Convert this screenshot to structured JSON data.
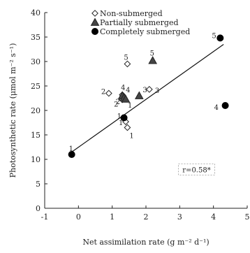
{
  "chart_data": {
    "type": "scatter",
    "xlabel": "Net assimilation rate (g m⁻² d⁻¹)",
    "ylabel": "Photosynthetic rate (μmol m⁻² s⁻¹)",
    "xlim": [
      -1,
      5
    ],
    "ylim": [
      0,
      40
    ],
    "x_ticks": [
      -1,
      0,
      1,
      2,
      3,
      4,
      5
    ],
    "y_ticks": [
      0,
      5,
      10,
      15,
      20,
      25,
      30,
      35,
      40
    ],
    "x_tick_labels": [
      "-1",
      "0",
      "1",
      "2",
      "3",
      "4",
      "5"
    ],
    "y_tick_labels": [
      "0",
      "5",
      "10",
      "15",
      "20",
      "25",
      "30",
      "35",
      "40"
    ],
    "grid": false,
    "legend_position": "top-left",
    "series": [
      {
        "name": "Non-submerged",
        "marker": "diamond-open",
        "points": [
          {
            "x": 0.9,
            "y": 23.5,
            "label": "2"
          },
          {
            "x": 1.3,
            "y": 22.2,
            "label": "2"
          },
          {
            "x": 1.4,
            "y": 17.7,
            "label": "1"
          },
          {
            "x": 1.45,
            "y": 16.5,
            "label": "1"
          },
          {
            "x": 2.1,
            "y": 24.3,
            "label": "3"
          },
          {
            "x": 1.45,
            "y": 29.5,
            "label": "5"
          },
          {
            "x": 1.3,
            "y": 23.2,
            "label": "4"
          }
        ]
      },
      {
        "name": "Partially submerged",
        "marker": "triangle-filled",
        "points": [
          {
            "x": 1.3,
            "y": 23.0,
            "label": "4"
          },
          {
            "x": 1.35,
            "y": 22.6,
            "label": "2"
          },
          {
            "x": 1.4,
            "y": 22.3,
            "label": "1"
          },
          {
            "x": 1.8,
            "y": 23.0,
            "label": "3"
          },
          {
            "x": 2.2,
            "y": 30.2,
            "label": "5"
          }
        ]
      },
      {
        "name": "Completely submerged",
        "marker": "circle-filled",
        "points": [
          {
            "x": -0.2,
            "y": 11.0,
            "label": "1"
          },
          {
            "x": 1.35,
            "y": 18.5,
            "label": "1"
          },
          {
            "x": 4.2,
            "y": 34.8,
            "label": "5"
          },
          {
            "x": 4.35,
            "y": 21.0,
            "label": "4"
          }
        ]
      }
    ],
    "trendline": {
      "x": [
        -0.2,
        4.3
      ],
      "y": [
        11.5,
        33.5
      ]
    },
    "annotation": {
      "text": "r=0.58*",
      "x": 3.5,
      "y": 7.8
    }
  }
}
